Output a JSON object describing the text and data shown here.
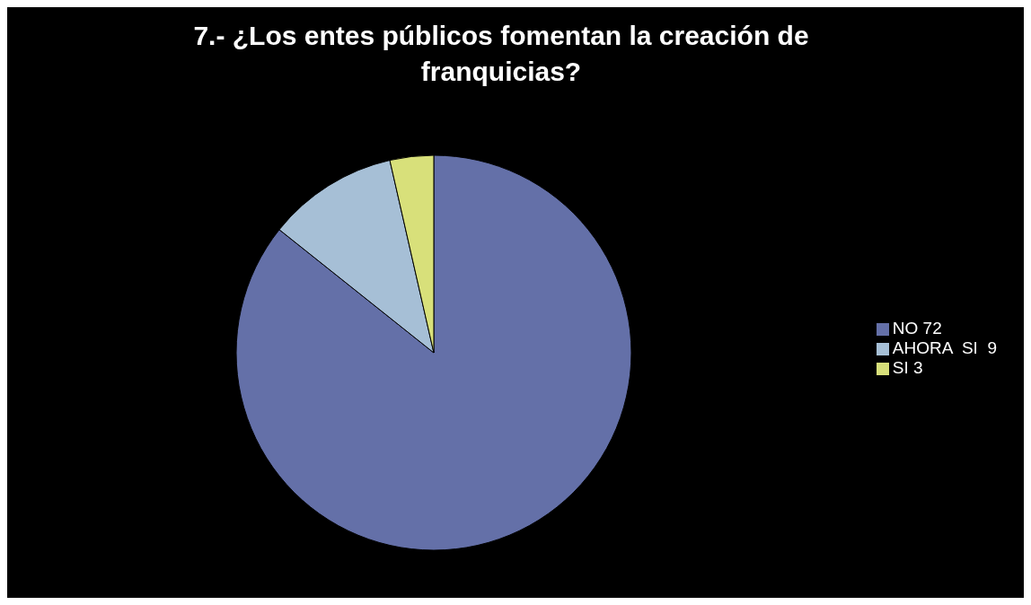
{
  "chart_data": {
    "type": "pie",
    "title": "7.- ¿Los entes públicos fomentan la creación  de franquicias?",
    "categories": [
      "NO 72",
      "AHORA  SI  9",
      "SI 3"
    ],
    "values": [
      72,
      9,
      3
    ],
    "colors": [
      "#6470a8",
      "#a6bfd6",
      "#d8e07a"
    ],
    "legend": "right"
  }
}
